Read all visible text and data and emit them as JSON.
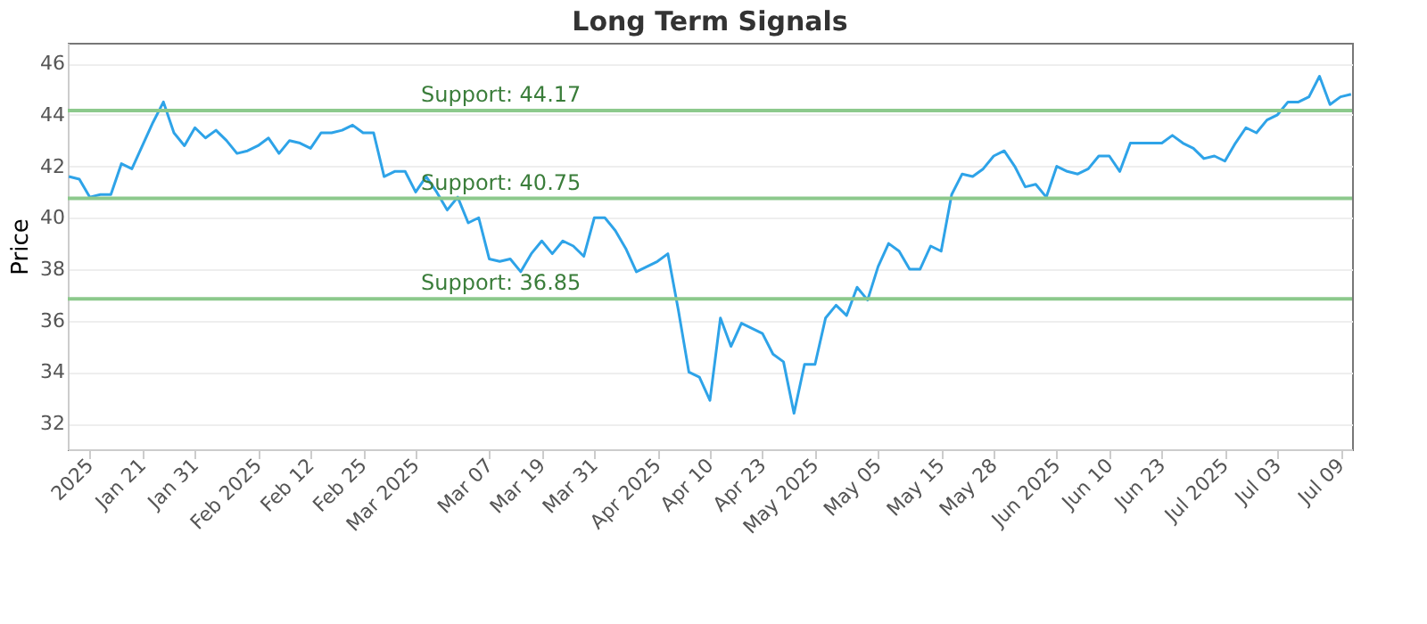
{
  "chart_data": {
    "type": "line",
    "title": "Long Term Signals",
    "ylabel": "Price",
    "categories": [
      null,
      null,
      "2025",
      null,
      null,
      null,
      null,
      "Jan 21",
      null,
      null,
      null,
      null,
      "Jan 31",
      null,
      null,
      null,
      null,
      null,
      "Feb 2025",
      null,
      null,
      null,
      null,
      "Feb 12",
      null,
      null,
      null,
      null,
      "Feb 25",
      null,
      null,
      null,
      null,
      "Mar 2025",
      null,
      null,
      null,
      null,
      null,
      null,
      "Mar 07",
      null,
      null,
      null,
      null,
      "Mar 19",
      null,
      null,
      null,
      null,
      "Mar 31",
      null,
      null,
      null,
      null,
      null,
      "Apr 2025",
      null,
      null,
      null,
      null,
      "Apr 10",
      null,
      null,
      null,
      null,
      "Apr 23",
      null,
      null,
      null,
      null,
      "May 2025",
      null,
      null,
      null,
      null,
      null,
      "May 05",
      null,
      null,
      null,
      null,
      null,
      "May 15",
      null,
      null,
      null,
      null,
      "May 28",
      null,
      null,
      null,
      null,
      null,
      "Jun 2025",
      null,
      null,
      null,
      null,
      "Jun 10",
      null,
      null,
      null,
      null,
      "Jun 23",
      null,
      null,
      null,
      null,
      null,
      "Jul 2025",
      null,
      null,
      null,
      null,
      "Jul 03",
      null,
      null,
      null,
      null,
      null,
      "Jul 09",
      null
    ],
    "series": [
      {
        "color": "#2ea3e8",
        "values": [
          41.6,
          41.5,
          40.8,
          40.9,
          40.9,
          42.1,
          41.9,
          42.8,
          43.7,
          44.5,
          43.3,
          42.8,
          43.5,
          43.1,
          43.4,
          43.0,
          42.5,
          42.6,
          42.8,
          43.1,
          42.5,
          43.0,
          42.9,
          42.7,
          43.3,
          43.3,
          43.4,
          43.6,
          43.3,
          43.3,
          41.6,
          41.8,
          41.8,
          41.0,
          41.6,
          41.0,
          40.3,
          40.8,
          39.8,
          40.0,
          38.4,
          38.3,
          38.4,
          37.9,
          38.6,
          39.1,
          38.6,
          39.1,
          38.9,
          38.5,
          40.0,
          40.0,
          39.5,
          38.8,
          37.9,
          38.1,
          38.3,
          38.6,
          36.4,
          34.0,
          33.8,
          32.9,
          36.1,
          35.0,
          35.9,
          35.7,
          35.5,
          34.7,
          34.4,
          32.4,
          34.3,
          34.3,
          36.1,
          36.6,
          36.2,
          37.3,
          36.8,
          38.1,
          39.0,
          38.7,
          38.0,
          38.0,
          38.9,
          38.7,
          40.9,
          41.7,
          41.6,
          41.9,
          42.4,
          42.6,
          42.0,
          41.2,
          41.3,
          40.8,
          42.0,
          41.8,
          41.7,
          41.9,
          42.4,
          42.4,
          41.8,
          42.9,
          42.9,
          42.9,
          42.9,
          43.2,
          42.9,
          42.7,
          42.3,
          42.4,
          42.2,
          42.9,
          43.5,
          43.3,
          43.8,
          44.0,
          44.5,
          44.5,
          44.7,
          45.5,
          44.4,
          44.7,
          44.8
        ]
      }
    ],
    "ylim": [
      31,
      46.8
    ],
    "yticks": [
      32,
      34,
      36,
      38,
      40,
      42,
      44,
      46
    ],
    "grid": "y",
    "marker": "none",
    "line_style": "solid",
    "ref_lines": [
      {
        "axis": "y",
        "value": 44.17,
        "label": "Support: 44.17",
        "color": "#8cc98c"
      },
      {
        "axis": "y",
        "value": 40.75,
        "label": "Support: 40.75",
        "color": "#8cc98c"
      },
      {
        "axis": "y",
        "value": 36.85,
        "label": "Support: 36.85",
        "color": "#8cc98c"
      }
    ]
  }
}
